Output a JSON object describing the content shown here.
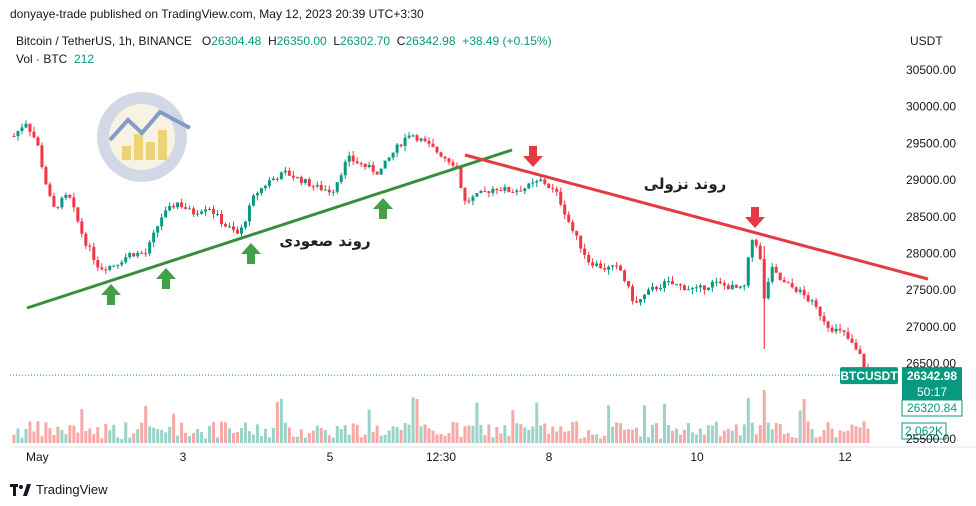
{
  "credit": "donyaye-trade published on TradingView.com, May 12, 2023 20:39 UTC+3:30",
  "legend": {
    "symbol": "Bitcoin / TetherUS, 1h, BINANCE",
    "o_label": "O",
    "o_val": "26304.48",
    "h_label": "H",
    "h_val": "26350.00",
    "l_label": "L",
    "l_val": "26302.70",
    "c_label": "C",
    "c_val": "26342.98",
    "chg": "+38.49 (+0.15%)",
    "vol_label": "Vol · BTC",
    "vol_val": "212"
  },
  "currency": "USDT",
  "footer": {
    "brand": "TradingView",
    "logo_icon": "tradingview-logo-icon"
  },
  "annotations": {
    "uptrend_label": "روند صعودی",
    "downtrend_label": "روند نزولی"
  },
  "price_labels": {
    "symbol_tag": "BTCUSDT",
    "last_price": "26342.98",
    "countdown": "50:17",
    "secondary_price": "26320.84",
    "volume_tag": "2.062K"
  },
  "colors": {
    "up": "#089981",
    "down": "#f23645",
    "vol_up": "#9ad4c8",
    "vol_down": "#f7a9a7",
    "uptrend_line": "#388e3c",
    "downtrend_line": "#e53945",
    "up_arrow": "#43a047",
    "down_arrow": "#e53945"
  },
  "chart_data": {
    "type": "candlestick",
    "symbol": "BTCUSDT",
    "interval": "1h",
    "y_ticks": [
      "30500.00",
      "30000.00",
      "29500.00",
      "29000.00",
      "28500.00",
      "28000.00",
      "27500.00",
      "27000.00",
      "26500.00",
      "25500.00"
    ],
    "x_ticks": [
      "May",
      "3",
      "5",
      "12:30",
      "8",
      "10",
      "12"
    ],
    "ylim": [
      25500,
      30700
    ],
    "close_path": [
      {
        "t": 0,
        "p": 29600
      },
      {
        "t": 3,
        "p": 29800
      },
      {
        "t": 6,
        "p": 29500
      },
      {
        "t": 8,
        "p": 29000
      },
      {
        "t": 10,
        "p": 28600
      },
      {
        "t": 14,
        "p": 28800
      },
      {
        "t": 18,
        "p": 28200
      },
      {
        "t": 22,
        "p": 27800
      },
      {
        "t": 26,
        "p": 27850
      },
      {
        "t": 30,
        "p": 28000
      },
      {
        "t": 34,
        "p": 28000
      },
      {
        "t": 38,
        "p": 28500
      },
      {
        "t": 42,
        "p": 28700
      },
      {
        "t": 46,
        "p": 28550
      },
      {
        "t": 50,
        "p": 28650
      },
      {
        "t": 54,
        "p": 28400
      },
      {
        "t": 58,
        "p": 28250
      },
      {
        "t": 62,
        "p": 28800
      },
      {
        "t": 66,
        "p": 29000
      },
      {
        "t": 70,
        "p": 29100
      },
      {
        "t": 74,
        "p": 29000
      },
      {
        "t": 78,
        "p": 28900
      },
      {
        "t": 82,
        "p": 28850
      },
      {
        "t": 86,
        "p": 29300
      },
      {
        "t": 90,
        "p": 29200
      },
      {
        "t": 94,
        "p": 29100
      },
      {
        "t": 98,
        "p": 29400
      },
      {
        "t": 102,
        "p": 29650
      },
      {
        "t": 106,
        "p": 29500
      },
      {
        "t": 110,
        "p": 29350
      },
      {
        "t": 114,
        "p": 29200
      },
      {
        "t": 116,
        "p": 28700
      },
      {
        "t": 120,
        "p": 28800
      },
      {
        "t": 124,
        "p": 28900
      },
      {
        "t": 128,
        "p": 28850
      },
      {
        "t": 132,
        "p": 28900
      },
      {
        "t": 136,
        "p": 29000
      },
      {
        "t": 140,
        "p": 28800
      },
      {
        "t": 144,
        "p": 28300
      },
      {
        "t": 148,
        "p": 27900
      },
      {
        "t": 152,
        "p": 27800
      },
      {
        "t": 156,
        "p": 27800
      },
      {
        "t": 160,
        "p": 27300
      },
      {
        "t": 164,
        "p": 27500
      },
      {
        "t": 168,
        "p": 27600
      },
      {
        "t": 172,
        "p": 27550
      },
      {
        "t": 176,
        "p": 27500
      },
      {
        "t": 180,
        "p": 27600
      },
      {
        "t": 184,
        "p": 27550
      },
      {
        "t": 188,
        "p": 27500
      },
      {
        "t": 190,
        "p": 28200
      },
      {
        "t": 192,
        "p": 28100
      },
      {
        "t": 193,
        "p": 27300
      },
      {
        "t": 195,
        "p": 27800
      },
      {
        "t": 198,
        "p": 27600
      },
      {
        "t": 202,
        "p": 27500
      },
      {
        "t": 206,
        "p": 27300
      },
      {
        "t": 210,
        "p": 27000
      },
      {
        "t": 214,
        "p": 26900
      },
      {
        "t": 218,
        "p": 26600
      },
      {
        "t": 220,
        "p": 26342.98
      }
    ],
    "uptrend_line": {
      "from": {
        "x_pct": 0,
        "p": 0
      },
      "note": "drawn"
    },
    "last_price": 26342.98
  }
}
